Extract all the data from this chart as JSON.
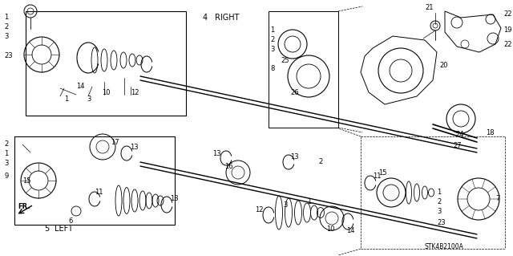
{
  "background_color": "#ffffff",
  "line_color": "#000000",
  "fig_width": 6.4,
  "fig_height": 3.19,
  "watermark": "STK4B2100A",
  "right_label": "RIGHT",
  "right_num": "4",
  "left_label": "LEFT",
  "left_num": "5",
  "fr_label": "FR."
}
